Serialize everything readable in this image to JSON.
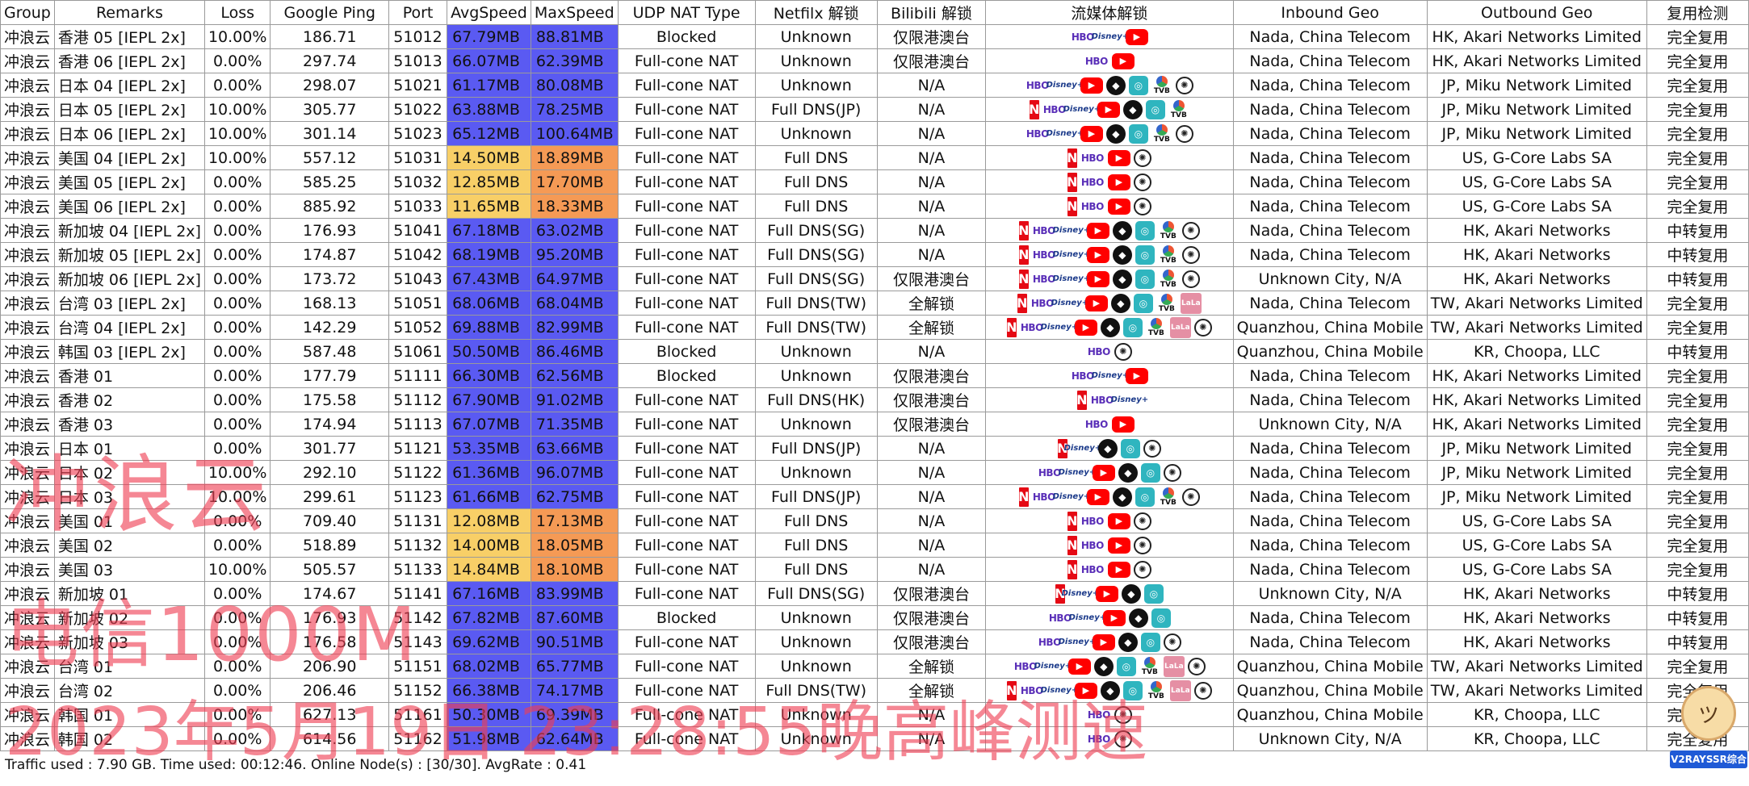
{
  "columns": [
    "Group",
    "Remarks",
    "Loss",
    "Google Ping",
    "Port",
    "AvgSpeed",
    "MaxSpeed",
    "UDP NAT Type",
    "Netfilx 解锁",
    "Bilibili 解锁",
    "流媒体解锁",
    "Inbound Geo",
    "Outbound Geo",
    "复用检测"
  ],
  "colors": {
    "blue": "#5a5af2",
    "yellow": "#f8cf67",
    "orange": "#f59a55",
    "watermark": "#ef3e52"
  },
  "rows": [
    {
      "group": "冲浪云",
      "remarks": "香港 05 [IEPL 2x]",
      "loss": "10.00%",
      "ping": "186.71",
      "port": "51012",
      "avg": "67.79MB",
      "max": "88.81MB",
      "avg_color": "blue",
      "max_color": "blue",
      "nat": "Blocked",
      "netflix": "Unknown",
      "bilibili": "仅限港澳台",
      "media": [
        "hbo",
        "disney",
        "youtube"
      ],
      "inbound": "Nada, China Telecom",
      "outbound": "HK, Akari Networks Limited",
      "reuse": "完全复用"
    },
    {
      "group": "冲浪云",
      "remarks": "香港 06 [IEPL 2x]",
      "loss": "0.00%",
      "ping": "297.74",
      "port": "51013",
      "avg": "66.07MB",
      "max": "62.39MB",
      "avg_color": "blue",
      "max_color": "blue",
      "nat": "Full-cone NAT",
      "netflix": "Unknown",
      "bilibili": "仅限港澳台",
      "media": [
        "hbo",
        "youtube"
      ],
      "inbound": "Nada, China Telecom",
      "outbound": "HK, Akari Networks Limited",
      "reuse": "完全复用"
    },
    {
      "group": "冲浪云",
      "remarks": "日本 04 [IEPL 2x]",
      "loss": "0.00%",
      "ping": "298.07",
      "port": "51021",
      "avg": "61.17MB",
      "max": "80.08MB",
      "avg_color": "blue",
      "max_color": "blue",
      "nat": "Full-cone NAT",
      "netflix": "Unknown",
      "bilibili": "N/A",
      "media": [
        "hbo",
        "disney",
        "youtube",
        "abema",
        "bahamut",
        "tvb",
        "chatgpt"
      ],
      "inbound": "Nada, China Telecom",
      "outbound": "JP, Miku Network Limited",
      "reuse": "完全复用"
    },
    {
      "group": "冲浪云",
      "remarks": "日本 05 [IEPL 2x]",
      "loss": "10.00%",
      "ping": "305.77",
      "port": "51022",
      "avg": "63.88MB",
      "max": "78.25MB",
      "avg_color": "blue",
      "max_color": "blue",
      "nat": "Full-cone NAT",
      "netflix": "Full DNS(JP)",
      "bilibili": "N/A",
      "media": [
        "netflix",
        "hbo",
        "disney",
        "youtube",
        "abema",
        "bahamut",
        "tvb"
      ],
      "inbound": "Nada, China Telecom",
      "outbound": "JP, Miku Network Limited",
      "reuse": "完全复用"
    },
    {
      "group": "冲浪云",
      "remarks": "日本 06 [IEPL 2x]",
      "loss": "10.00%",
      "ping": "301.14",
      "port": "51023",
      "avg": "65.12MB",
      "max": "100.64MB",
      "avg_color": "blue",
      "max_color": "blue",
      "nat": "Full-cone NAT",
      "netflix": "Unknown",
      "bilibili": "N/A",
      "media": [
        "hbo",
        "disney",
        "youtube",
        "abema",
        "bahamut",
        "tvb",
        "chatgpt"
      ],
      "inbound": "Nada, China Telecom",
      "outbound": "JP, Miku Network Limited",
      "reuse": "完全复用"
    },
    {
      "group": "冲浪云",
      "remarks": "美国 04 [IEPL 2x]",
      "loss": "10.00%",
      "ping": "557.12",
      "port": "51031",
      "avg": "14.50MB",
      "max": "18.89MB",
      "avg_color": "yellow",
      "max_color": "orange",
      "nat": "Full-cone NAT",
      "netflix": "Full DNS",
      "bilibili": "N/A",
      "media": [
        "netflix",
        "hbo",
        "youtube",
        "chatgpt"
      ],
      "inbound": "Nada, China Telecom",
      "outbound": "US, G-Core Labs SA",
      "reuse": "完全复用"
    },
    {
      "group": "冲浪云",
      "remarks": "美国 05 [IEPL 2x]",
      "loss": "0.00%",
      "ping": "585.25",
      "port": "51032",
      "avg": "12.85MB",
      "max": "17.70MB",
      "avg_color": "yellow",
      "max_color": "orange",
      "nat": "Full-cone NAT",
      "netflix": "Full DNS",
      "bilibili": "N/A",
      "media": [
        "netflix",
        "hbo",
        "youtube",
        "chatgpt"
      ],
      "inbound": "Nada, China Telecom",
      "outbound": "US, G-Core Labs SA",
      "reuse": "完全复用"
    },
    {
      "group": "冲浪云",
      "remarks": "美国 06 [IEPL 2x]",
      "loss": "0.00%",
      "ping": "885.92",
      "port": "51033",
      "avg": "11.65MB",
      "max": "18.33MB",
      "avg_color": "yellow",
      "max_color": "orange",
      "nat": "Full-cone NAT",
      "netflix": "Full DNS",
      "bilibili": "N/A",
      "media": [
        "netflix",
        "hbo",
        "youtube",
        "chatgpt"
      ],
      "inbound": "Nada, China Telecom",
      "outbound": "US, G-Core Labs SA",
      "reuse": "完全复用"
    },
    {
      "group": "冲浪云",
      "remarks": "新加坡 04 [IEPL 2x]",
      "loss": "0.00%",
      "ping": "176.93",
      "port": "51041",
      "avg": "67.18MB",
      "max": "63.02MB",
      "avg_color": "blue",
      "max_color": "blue",
      "nat": "Full-cone NAT",
      "netflix": "Full DNS(SG)",
      "bilibili": "N/A",
      "media": [
        "netflix",
        "hbo",
        "disney",
        "youtube",
        "abema",
        "bahamut",
        "tvb",
        "chatgpt"
      ],
      "inbound": "Nada, China Telecom",
      "outbound": "HK, Akari Networks",
      "reuse": "中转复用"
    },
    {
      "group": "冲浪云",
      "remarks": "新加坡 05 [IEPL 2x]",
      "loss": "0.00%",
      "ping": "174.87",
      "port": "51042",
      "avg": "68.19MB",
      "max": "95.20MB",
      "avg_color": "blue",
      "max_color": "blue",
      "nat": "Full-cone NAT",
      "netflix": "Full DNS(SG)",
      "bilibili": "N/A",
      "media": [
        "netflix",
        "hbo",
        "disney",
        "youtube",
        "abema",
        "bahamut",
        "tvb",
        "chatgpt"
      ],
      "inbound": "Nada, China Telecom",
      "outbound": "HK, Akari Networks",
      "reuse": "中转复用"
    },
    {
      "group": "冲浪云",
      "remarks": "新加坡 06 [IEPL 2x]",
      "loss": "0.00%",
      "ping": "173.72",
      "port": "51043",
      "avg": "67.43MB",
      "max": "64.97MB",
      "avg_color": "blue",
      "max_color": "blue",
      "nat": "Full-cone NAT",
      "netflix": "Full DNS(SG)",
      "bilibili": "仅限港澳台",
      "media": [
        "netflix",
        "hbo",
        "disney",
        "youtube",
        "abema",
        "bahamut",
        "tvb",
        "chatgpt"
      ],
      "inbound": "Unknown City, N/A",
      "outbound": "HK, Akari Networks",
      "reuse": "中转复用"
    },
    {
      "group": "冲浪云",
      "remarks": "台湾 03 [IEPL 2x]",
      "loss": "0.00%",
      "ping": "168.13",
      "port": "51051",
      "avg": "68.06MB",
      "max": "68.04MB",
      "avg_color": "blue",
      "max_color": "blue",
      "nat": "Full-cone NAT",
      "netflix": "Full DNS(TW)",
      "bilibili": "全解锁",
      "media": [
        "netflix",
        "hbo",
        "disney",
        "youtube",
        "abema",
        "bahamut",
        "tvb",
        "lala"
      ],
      "inbound": "Nada, China Telecom",
      "outbound": "TW, Akari Networks Limited",
      "reuse": "完全复用"
    },
    {
      "group": "冲浪云",
      "remarks": "台湾 04 [IEPL 2x]",
      "loss": "0.00%",
      "ping": "142.29",
      "port": "51052",
      "avg": "69.88MB",
      "max": "82.99MB",
      "avg_color": "blue",
      "max_color": "blue",
      "nat": "Full-cone NAT",
      "netflix": "Full DNS(TW)",
      "bilibili": "全解锁",
      "media": [
        "netflix",
        "hbo",
        "disney",
        "youtube",
        "abema",
        "bahamut",
        "tvb",
        "lala",
        "chatgpt"
      ],
      "inbound": "Quanzhou, China Mobile",
      "outbound": "TW, Akari Networks Limited",
      "reuse": "完全复用"
    },
    {
      "group": "冲浪云",
      "remarks": "韩国 03 [IEPL 2x]",
      "loss": "0.00%",
      "ping": "587.48",
      "port": "51061",
      "avg": "50.50MB",
      "max": "86.46MB",
      "avg_color": "blue",
      "max_color": "blue",
      "nat": "Blocked",
      "netflix": "Unknown",
      "bilibili": "N/A",
      "media": [
        "hbo",
        "chatgpt"
      ],
      "inbound": "Quanzhou, China Mobile",
      "outbound": "KR, Choopa, LLC",
      "reuse": "中转复用"
    },
    {
      "group": "冲浪云",
      "remarks": "香港 01",
      "loss": "0.00%",
      "ping": "177.79",
      "port": "51111",
      "avg": "66.30MB",
      "max": "62.56MB",
      "avg_color": "blue",
      "max_color": "blue",
      "nat": "Blocked",
      "netflix": "Unknown",
      "bilibili": "仅限港澳台",
      "media": [
        "hbo",
        "disney",
        "youtube"
      ],
      "inbound": "Nada, China Telecom",
      "outbound": "HK, Akari Networks Limited",
      "reuse": "完全复用"
    },
    {
      "group": "冲浪云",
      "remarks": "香港 02",
      "loss": "0.00%",
      "ping": "175.58",
      "port": "51112",
      "avg": "67.90MB",
      "max": "91.02MB",
      "avg_color": "blue",
      "max_color": "blue",
      "nat": "Full-cone NAT",
      "netflix": "Full DNS(HK)",
      "bilibili": "仅限港澳台",
      "media": [
        "netflix",
        "hbo",
        "disney"
      ],
      "inbound": "Nada, China Telecom",
      "outbound": "HK, Akari Networks Limited",
      "reuse": "完全复用"
    },
    {
      "group": "冲浪云",
      "remarks": "香港 03",
      "loss": "0.00%",
      "ping": "174.94",
      "port": "51113",
      "avg": "67.07MB",
      "max": "71.35MB",
      "avg_color": "blue",
      "max_color": "blue",
      "nat": "Full-cone NAT",
      "netflix": "Unknown",
      "bilibili": "仅限港澳台",
      "media": [
        "hbo",
        "youtube"
      ],
      "inbound": "Unknown City, N/A",
      "outbound": "HK, Akari Networks Limited",
      "reuse": "完全复用"
    },
    {
      "group": "冲浪云",
      "remarks": "日本 01",
      "loss": "0.00%",
      "ping": "301.77",
      "port": "51121",
      "avg": "53.35MB",
      "max": "63.66MB",
      "avg_color": "blue",
      "max_color": "blue",
      "nat": "Full-cone NAT",
      "netflix": "Full DNS(JP)",
      "bilibili": "N/A",
      "media": [
        "netflix",
        "disney",
        "abema",
        "bahamut",
        "chatgpt"
      ],
      "inbound": "Nada, China Telecom",
      "outbound": "JP, Miku Network Limited",
      "reuse": "完全复用"
    },
    {
      "group": "冲浪云",
      "remarks": "日本 02",
      "loss": "10.00%",
      "ping": "292.10",
      "port": "51122",
      "avg": "61.36MB",
      "max": "96.07MB",
      "avg_color": "blue",
      "max_color": "blue",
      "nat": "Full-cone NAT",
      "netflix": "Unknown",
      "bilibili": "N/A",
      "media": [
        "hbo",
        "disney",
        "youtube",
        "abema",
        "bahamut",
        "chatgpt"
      ],
      "inbound": "Nada, China Telecom",
      "outbound": "JP, Miku Network Limited",
      "reuse": "完全复用"
    },
    {
      "group": "冲浪云",
      "remarks": "日本 03",
      "loss": "10.00%",
      "ping": "299.61",
      "port": "51123",
      "avg": "61.66MB",
      "max": "62.75MB",
      "avg_color": "blue",
      "max_color": "blue",
      "nat": "Full-cone NAT",
      "netflix": "Full DNS(JP)",
      "bilibili": "N/A",
      "media": [
        "netflix",
        "hbo",
        "disney",
        "youtube",
        "abema",
        "bahamut",
        "tvb",
        "chatgpt"
      ],
      "inbound": "Nada, China Telecom",
      "outbound": "JP, Miku Network Limited",
      "reuse": "完全复用"
    },
    {
      "group": "冲浪云",
      "remarks": "美国 01",
      "loss": "0.00%",
      "ping": "709.40",
      "port": "51131",
      "avg": "12.08MB",
      "max": "17.13MB",
      "avg_color": "yellow",
      "max_color": "orange",
      "nat": "Full-cone NAT",
      "netflix": "Full DNS",
      "bilibili": "N/A",
      "media": [
        "netflix",
        "hbo",
        "youtube",
        "chatgpt"
      ],
      "inbound": "Nada, China Telecom",
      "outbound": "US, G-Core Labs SA",
      "reuse": "完全复用"
    },
    {
      "group": "冲浪云",
      "remarks": "美国 02",
      "loss": "0.00%",
      "ping": "518.89",
      "port": "51132",
      "avg": "14.00MB",
      "max": "18.05MB",
      "avg_color": "yellow",
      "max_color": "orange",
      "nat": "Full-cone NAT",
      "netflix": "Full DNS",
      "bilibili": "N/A",
      "media": [
        "netflix",
        "hbo",
        "youtube",
        "chatgpt"
      ],
      "inbound": "Nada, China Telecom",
      "outbound": "US, G-Core Labs SA",
      "reuse": "完全复用"
    },
    {
      "group": "冲浪云",
      "remarks": "美国 03",
      "loss": "10.00%",
      "ping": "505.57",
      "port": "51133",
      "avg": "14.84MB",
      "max": "18.10MB",
      "avg_color": "yellow",
      "max_color": "orange",
      "nat": "Full-cone NAT",
      "netflix": "Full DNS",
      "bilibili": "N/A",
      "media": [
        "netflix",
        "hbo",
        "youtube",
        "chatgpt"
      ],
      "inbound": "Nada, China Telecom",
      "outbound": "US, G-Core Labs SA",
      "reuse": "完全复用"
    },
    {
      "group": "冲浪云",
      "remarks": "新加坡 01",
      "loss": "0.00%",
      "ping": "174.67",
      "port": "51141",
      "avg": "67.16MB",
      "max": "83.99MB",
      "avg_color": "blue",
      "max_color": "blue",
      "nat": "Full-cone NAT",
      "netflix": "Full DNS(SG)",
      "bilibili": "仅限港澳台",
      "media": [
        "netflix",
        "disney",
        "youtube",
        "abema",
        "bahamut"
      ],
      "inbound": "Unknown City, N/A",
      "outbound": "HK, Akari Networks",
      "reuse": "中转复用"
    },
    {
      "group": "冲浪云",
      "remarks": "新加坡 02",
      "loss": "0.00%",
      "ping": "176.93",
      "port": "51142",
      "avg": "67.82MB",
      "max": "87.60MB",
      "avg_color": "blue",
      "max_color": "blue",
      "nat": "Blocked",
      "netflix": "Unknown",
      "bilibili": "仅限港澳台",
      "media": [
        "hbo",
        "disney",
        "youtube",
        "abema",
        "bahamut"
      ],
      "inbound": "Nada, China Telecom",
      "outbound": "HK, Akari Networks",
      "reuse": "中转复用"
    },
    {
      "group": "冲浪云",
      "remarks": "新加坡 03",
      "loss": "0.00%",
      "ping": "176.58",
      "port": "51143",
      "avg": "69.62MB",
      "max": "90.51MB",
      "avg_color": "blue",
      "max_color": "blue",
      "nat": "Full-cone NAT",
      "netflix": "Unknown",
      "bilibili": "仅限港澳台",
      "media": [
        "hbo",
        "disney",
        "youtube",
        "abema",
        "bahamut",
        "chatgpt"
      ],
      "inbound": "Nada, China Telecom",
      "outbound": "HK, Akari Networks",
      "reuse": "中转复用"
    },
    {
      "group": "冲浪云",
      "remarks": "台湾 01",
      "loss": "0.00%",
      "ping": "206.90",
      "port": "51151",
      "avg": "68.02MB",
      "max": "65.77MB",
      "avg_color": "blue",
      "max_color": "blue",
      "nat": "Full-cone NAT",
      "netflix": "Unknown",
      "bilibili": "全解锁",
      "media": [
        "hbo",
        "disney",
        "youtube",
        "abema",
        "bahamut",
        "tvb",
        "lala",
        "chatgpt"
      ],
      "inbound": "Quanzhou, China Mobile",
      "outbound": "TW, Akari Networks Limited",
      "reuse": "完全复用"
    },
    {
      "group": "冲浪云",
      "remarks": "台湾 02",
      "loss": "0.00%",
      "ping": "206.46",
      "port": "51152",
      "avg": "66.38MB",
      "max": "74.17MB",
      "avg_color": "blue",
      "max_color": "blue",
      "nat": "Full-cone NAT",
      "netflix": "Full DNS(TW)",
      "bilibili": "全解锁",
      "media": [
        "netflix",
        "hbo",
        "disney",
        "youtube",
        "abema",
        "bahamut",
        "tvb",
        "lala",
        "chatgpt"
      ],
      "inbound": "Quanzhou, China Mobile",
      "outbound": "TW, Akari Networks Limited",
      "reuse": "完全复用"
    },
    {
      "group": "冲浪云",
      "remarks": "韩国 01",
      "loss": "0.00%",
      "ping": "627.13",
      "port": "51161",
      "avg": "50.30MB",
      "max": "69.39MB",
      "avg_color": "blue",
      "max_color": "blue",
      "nat": "Full-cone NAT",
      "netflix": "Unknown",
      "bilibili": "N/A",
      "media": [
        "hbo",
        "chatgpt"
      ],
      "inbound": "Quanzhou, China Mobile",
      "outbound": "KR, Choopa, LLC",
      "reuse": "完全复用"
    },
    {
      "group": "冲浪云",
      "remarks": "韩国 02",
      "loss": "0.00%",
      "ping": "614.56",
      "port": "51162",
      "avg": "51.98MB",
      "max": "62.64MB",
      "avg_color": "blue",
      "max_color": "blue",
      "nat": "Full-cone NAT",
      "netflix": "Unknown",
      "bilibili": "N/A",
      "media": [
        "hbo",
        "chatgpt"
      ],
      "inbound": "Unknown City, N/A",
      "outbound": "KR, Choopa, LLC",
      "reuse": "完全复用"
    }
  ],
  "icons": {
    "netflix": {
      "glyph": "N"
    },
    "hbo": {
      "glyph": "HBO"
    },
    "disney": {
      "glyph": "Disney+"
    },
    "youtube": {
      "glyph": "▶"
    },
    "abema": {
      "glyph": "◆"
    },
    "bahamut": {
      "glyph": "◎"
    },
    "tvb": {
      "glyph": "TVB"
    },
    "chatgpt": {
      "glyph": "✺"
    },
    "lala": {
      "glyph": "LaLa"
    }
  },
  "footer": "Traffic used : 7.90 GB. Time used: 00:12:46. Online Node(s) : [30/30]. AvgRate : 0.41",
  "watermark": {
    "line1": "冲浪云",
    "line2": "电信1000M",
    "line3": "2023年5月19日 23:28:55晚高峰测速"
  },
  "logo": {
    "text": "V2RAYSSR综合网"
  }
}
